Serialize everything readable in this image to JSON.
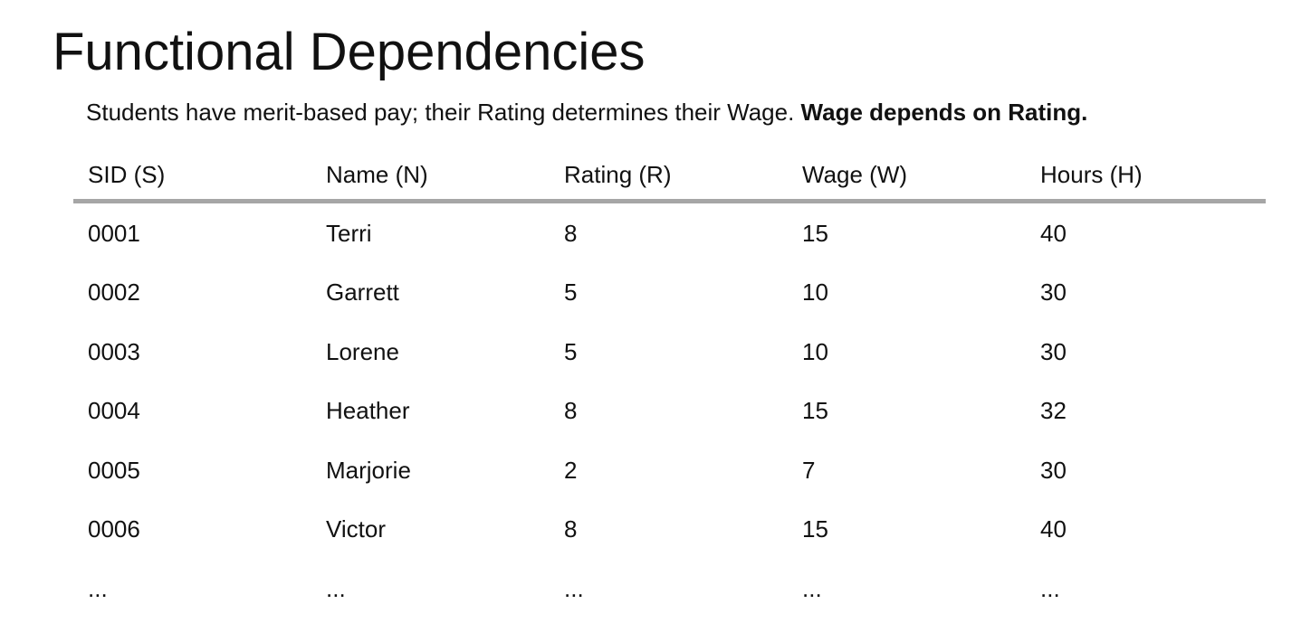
{
  "title": "Functional Dependencies",
  "subtitle": {
    "text": "Students have merit-based pay; their Rating determines their Wage. ",
    "bold": "Wage depends on Rating."
  },
  "table": {
    "headers": [
      "SID (S)",
      "Name (N)",
      "Rating (R)",
      "Wage (W)",
      "Hours (H)"
    ],
    "rows": [
      [
        "0001",
        "Terri",
        "8",
        "15",
        "40"
      ],
      [
        "0002",
        "Garrett",
        "5",
        "10",
        "30"
      ],
      [
        "0003",
        "Lorene",
        "5",
        "10",
        "30"
      ],
      [
        "0004",
        "Heather",
        "8",
        "15",
        "32"
      ],
      [
        "0005",
        "Marjorie",
        "2",
        "7",
        "30"
      ],
      [
        "0006",
        "Victor",
        "8",
        "15",
        "40"
      ],
      [
        "...",
        "...",
        "...",
        "...",
        "..."
      ]
    ]
  }
}
